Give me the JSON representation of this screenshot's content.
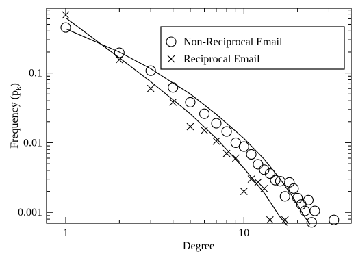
{
  "chart_data": {
    "type": "scatter",
    "title": "",
    "xlabel": "Degree",
    "ylabel": "Frequency (p",
    "ylabel_subscript": "k",
    "ylabel_close": ")",
    "xscale": "log",
    "yscale": "log",
    "xlim": [
      1,
      40
    ],
    "ylim": [
      0.0007,
      0.85
    ],
    "grid": false,
    "legend_position": "top-right",
    "x_ticks": [
      {
        "value": 1,
        "label": "1"
      },
      {
        "value": 10,
        "label": "10"
      }
    ],
    "y_ticks": [
      {
        "value": 0.001,
        "label": "0.001"
      },
      {
        "value": 0.01,
        "label": "0.01"
      },
      {
        "value": 0.1,
        "label": "0.1"
      }
    ],
    "series": [
      {
        "name": "Non-Reciprocal Email",
        "marker": "circle",
        "points": [
          [
            1,
            0.45
          ],
          [
            2,
            0.195
          ],
          [
            3,
            0.108
          ],
          [
            4,
            0.062
          ],
          [
            5,
            0.038
          ],
          [
            6,
            0.026
          ],
          [
            7,
            0.019
          ],
          [
            8,
            0.0145
          ],
          [
            9,
            0.01
          ],
          [
            10,
            0.0088
          ],
          [
            11,
            0.0068
          ],
          [
            12,
            0.0049
          ],
          [
            13,
            0.0041
          ],
          [
            14,
            0.0036
          ],
          [
            15,
            0.0029
          ],
          [
            16,
            0.0028
          ],
          [
            17,
            0.0017
          ],
          [
            18,
            0.0027
          ],
          [
            19,
            0.0022
          ],
          [
            20,
            0.0016
          ],
          [
            21,
            0.0013
          ],
          [
            22,
            0.00105
          ],
          [
            23,
            0.0015
          ],
          [
            24,
            0.00072
          ],
          [
            25,
            0.00105
          ],
          [
            32,
            0.00078
          ]
        ],
        "fit": [
          [
            1,
            0.43
          ],
          [
            2,
            0.2
          ],
          [
            3,
            0.115
          ],
          [
            5,
            0.05
          ],
          [
            7,
            0.0255
          ],
          [
            10,
            0.0115
          ],
          [
            13,
            0.0058
          ],
          [
            16,
            0.003
          ],
          [
            19,
            0.0016
          ],
          [
            22,
            0.00085
          ],
          [
            23.5,
            0.00068
          ]
        ]
      },
      {
        "name": "Reciprocal Email",
        "marker": "cross",
        "points": [
          [
            1,
            0.68
          ],
          [
            2,
            0.155
          ],
          [
            3,
            0.06
          ],
          [
            4,
            0.038
          ],
          [
            5,
            0.017
          ],
          [
            6,
            0.015
          ],
          [
            7,
            0.0105
          ],
          [
            8,
            0.007
          ],
          [
            9,
            0.006
          ],
          [
            10,
            0.002
          ],
          [
            11,
            0.003
          ],
          [
            12,
            0.0027
          ],
          [
            13,
            0.0022
          ],
          [
            14,
            0.00078
          ],
          [
            17,
            0.00078
          ]
        ],
        "fit": [
          [
            1,
            0.62
          ],
          [
            2,
            0.165
          ],
          [
            3,
            0.075
          ],
          [
            5,
            0.026
          ],
          [
            7,
            0.0115
          ],
          [
            10,
            0.0043
          ],
          [
            13,
            0.0019
          ],
          [
            16,
            0.00085
          ],
          [
            17.5,
            0.00065
          ]
        ]
      }
    ]
  }
}
